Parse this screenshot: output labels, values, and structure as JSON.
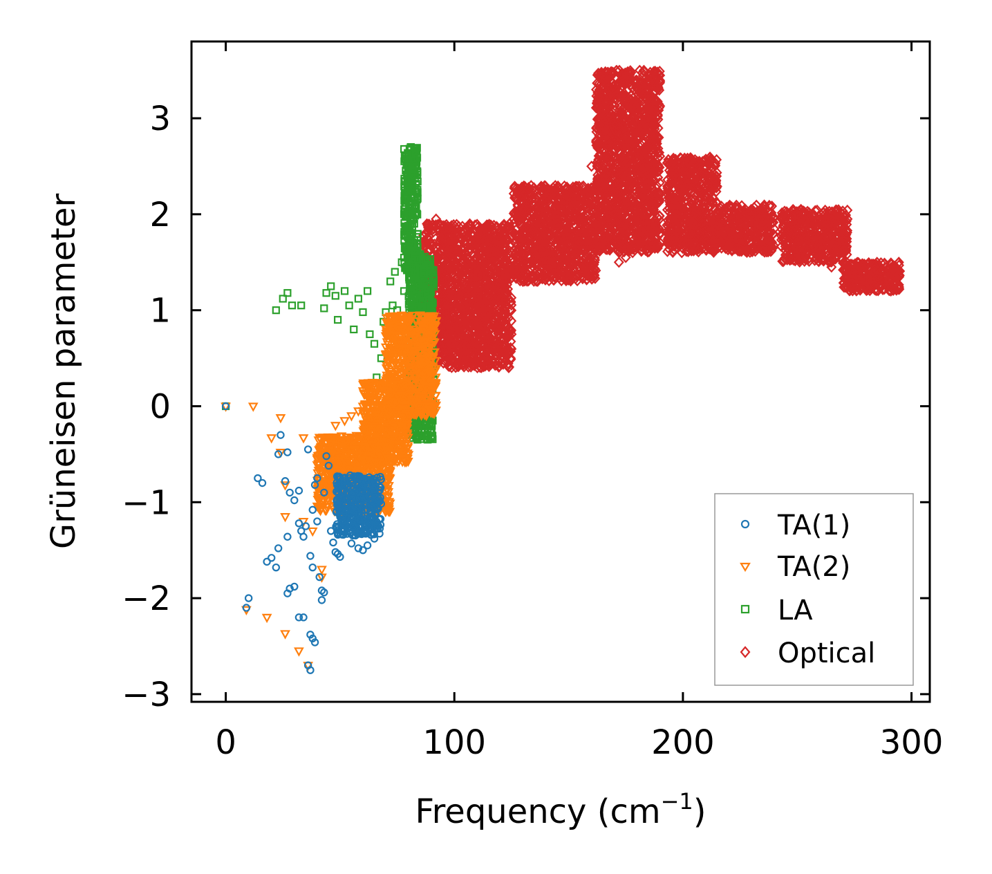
{
  "chart_data": {
    "type": "scatter",
    "title": "",
    "xlabel": "Frequency (cm",
    "xlabel_sup": "−1",
    "xlabel_close": ")",
    "ylabel": "Grüneisen parameter",
    "xlim": [
      -15,
      308
    ],
    "ylim": [
      -3.08,
      3.8
    ],
    "xticks": [
      0,
      100,
      200,
      300
    ],
    "xtick_labels": [
      "0",
      "100",
      "200",
      "300"
    ],
    "yticks": [
      -3,
      -2,
      -1,
      0,
      1,
      2,
      3
    ],
    "ytick_labels": [
      "−3",
      "−2",
      "−1",
      "0",
      "1",
      "2",
      "3"
    ],
    "grid": false,
    "legend_position": "lower-right",
    "series": [
      {
        "name": "TA(1)",
        "label": "TA(1)",
        "marker": "circle",
        "color": "#1f77b4",
        "points": [
          [
            0,
            0
          ],
          [
            10,
            -2.0
          ],
          [
            9,
            -2.1
          ],
          [
            14,
            -0.75
          ],
          [
            16,
            -0.8
          ],
          [
            18,
            -1.62
          ],
          [
            20,
            -1.58
          ],
          [
            22,
            -1.68
          ],
          [
            23,
            -1.48
          ],
          [
            24,
            -0.3
          ],
          [
            23,
            -0.5
          ],
          [
            27,
            -0.48
          ],
          [
            26,
            -0.78
          ],
          [
            28,
            -0.9
          ],
          [
            27,
            -1.36
          ],
          [
            28,
            -1.9
          ],
          [
            30,
            -1.88
          ],
          [
            27,
            -1.95
          ],
          [
            30,
            -0.98
          ],
          [
            32,
            -0.88
          ],
          [
            32,
            -1.22
          ],
          [
            32,
            -2.2
          ],
          [
            34,
            -2.2
          ],
          [
            33,
            -1.3
          ],
          [
            35,
            -1.25
          ],
          [
            34,
            -1.36
          ],
          [
            36,
            -0.45
          ],
          [
            36,
            -2.7
          ],
          [
            37,
            -2.75
          ],
          [
            37,
            -2.38
          ],
          [
            38,
            -2.42
          ],
          [
            39,
            -2.46
          ],
          [
            38,
            -1.08
          ],
          [
            37,
            -1.56
          ],
          [
            38,
            -1.68
          ],
          [
            39,
            -0.82
          ],
          [
            40,
            -0.75
          ],
          [
            40,
            -1.2
          ],
          [
            41,
            -1.78
          ],
          [
            42,
            -1.92
          ],
          [
            42,
            -2.02
          ],
          [
            43,
            -1.94
          ],
          [
            43,
            -0.9
          ],
          [
            44,
            -0.52
          ],
          [
            45,
            -0.62
          ],
          [
            46,
            -1.3
          ],
          [
            47,
            -1.42
          ],
          [
            48,
            -1.52
          ],
          [
            49,
            -1.54
          ],
          [
            50,
            -1.57
          ],
          [
            55,
            -1.43
          ],
          [
            58,
            -1.48
          ],
          [
            60,
            -1.5
          ],
          [
            62,
            -1.45
          ],
          [
            65,
            -1.38
          ]
        ],
        "dense": {
          "x": [
            48,
            68
          ],
          "y": [
            -1.35,
            -0.72
          ]
        }
      },
      {
        "name": "TA(2)",
        "label": "TA(2)",
        "marker": "triangle-down",
        "color": "#ff7f0e",
        "points": [
          [
            0,
            0
          ],
          [
            12,
            0
          ],
          [
            24,
            -0.12
          ],
          [
            20,
            -0.33
          ],
          [
            24,
            -0.48
          ],
          [
            26,
            -0.82
          ],
          [
            26,
            -1.15
          ],
          [
            9,
            -2.12
          ],
          [
            18,
            -2.2
          ],
          [
            26,
            -2.37
          ],
          [
            32,
            -2.55
          ],
          [
            36,
            -2.7
          ],
          [
            34,
            -1.2
          ],
          [
            38,
            -1.3
          ],
          [
            42,
            -1.78
          ],
          [
            42,
            -1.7
          ],
          [
            34,
            -0.33
          ],
          [
            40,
            -0.55
          ],
          [
            46,
            -0.4
          ],
          [
            48,
            -0.2
          ],
          [
            52,
            -0.15
          ],
          [
            55,
            -0.1
          ],
          [
            58,
            -0.05
          ],
          [
            60,
            0.0
          ]
        ],
        "dense": [
          {
            "x": [
              40,
              72
            ],
            "y": [
              -1.1,
              -0.3
            ]
          },
          {
            "x": [
              60,
              80
            ],
            "y": [
              -0.6,
              0.25
            ]
          },
          {
            "x": [
              70,
              92
            ],
            "y": [
              -0.1,
              0.95
            ]
          }
        ]
      },
      {
        "name": "LA",
        "label": "LA",
        "marker": "square",
        "color": "#2ca02c",
        "points": [
          [
            0,
            0
          ],
          [
            22,
            1.0
          ],
          [
            25,
            1.12
          ],
          [
            27,
            1.18
          ],
          [
            29,
            1.05
          ],
          [
            33,
            1.05
          ],
          [
            43,
            1.02
          ],
          [
            44,
            1.18
          ],
          [
            46,
            1.25
          ],
          [
            48,
            1.15
          ],
          [
            49,
            0.9
          ],
          [
            52,
            1.2
          ],
          [
            54,
            1.05
          ],
          [
            56,
            0.8
          ],
          [
            58,
            1.12
          ],
          [
            60,
            0.98
          ],
          [
            62,
            1.2
          ],
          [
            63,
            0.75
          ],
          [
            65,
            0.65
          ],
          [
            66,
            0.3
          ],
          [
            68,
            0.5
          ],
          [
            69,
            0.88
          ],
          [
            70,
            0.98
          ],
          [
            72,
            1.3
          ],
          [
            73,
            1.05
          ],
          [
            74,
            1.4
          ],
          [
            75,
            1.0
          ],
          [
            76,
            0.6
          ],
          [
            77,
            1.5
          ],
          [
            78,
            1.2
          ],
          [
            78,
            2.0
          ],
          [
            80,
            2.5
          ],
          [
            81,
            2.7
          ]
        ],
        "dense": [
          {
            "x": [
              78,
              84
            ],
            "y": [
              1.4,
              2.7
            ]
          },
          {
            "x": [
              80,
              91
            ],
            "y": [
              -0.35,
              1.6
            ]
          }
        ]
      },
      {
        "name": "Optical",
        "label": "Optical",
        "marker": "diamond",
        "color": "#d62728",
        "points": [
          [
            80,
            2.0
          ],
          [
            88,
            1.9
          ],
          [
            92,
            1.95
          ],
          [
            96,
            1.8
          ],
          [
            100,
            1.6
          ],
          [
            104,
            1.4
          ],
          [
            106,
            1.02
          ],
          [
            108,
            1.3
          ],
          [
            110,
            1.1
          ],
          [
            112,
            1.5
          ],
          [
            115,
            0.7
          ],
          [
            120,
            0.8
          ],
          [
            125,
            0.75
          ],
          [
            128,
            1.4
          ],
          [
            135,
            1.55
          ],
          [
            140,
            1.7
          ],
          [
            145,
            1.4
          ],
          [
            150,
            1.7
          ],
          [
            155,
            2.1
          ],
          [
            160,
            2.5
          ],
          [
            172,
            1.5
          ],
          [
            175,
            1.55
          ],
          [
            178,
            1.6
          ],
          [
            182,
            1.7
          ],
          [
            190,
            1.8
          ],
          [
            200,
            1.7
          ],
          [
            205,
            1.75
          ],
          [
            210,
            1.7
          ],
          [
            220,
            1.65
          ],
          [
            235,
            1.62
          ],
          [
            245,
            1.58
          ],
          [
            255,
            1.6
          ],
          [
            265,
            1.45
          ],
          [
            280,
            1.3
          ],
          [
            290,
            1.25
          ],
          [
            293,
            1.22
          ]
        ],
        "dense": [
          {
            "x": [
              86,
              125
            ],
            "y": [
              0.4,
              1.9
            ]
          },
          {
            "x": [
              126,
              162
            ],
            "y": [
              1.3,
              2.3
            ]
          },
          {
            "x": [
              162,
              190
            ],
            "y": [
              1.6,
              3.5
            ]
          },
          {
            "x": [
              193,
              215
            ],
            "y": [
              1.6,
              2.6
            ]
          },
          {
            "x": [
              215,
              240
            ],
            "y": [
              1.6,
              2.1
            ]
          },
          {
            "x": [
              243,
              272
            ],
            "y": [
              1.5,
              2.05
            ]
          },
          {
            "x": [
              270,
              295
            ],
            "y": [
              1.2,
              1.5
            ]
          }
        ]
      }
    ]
  }
}
